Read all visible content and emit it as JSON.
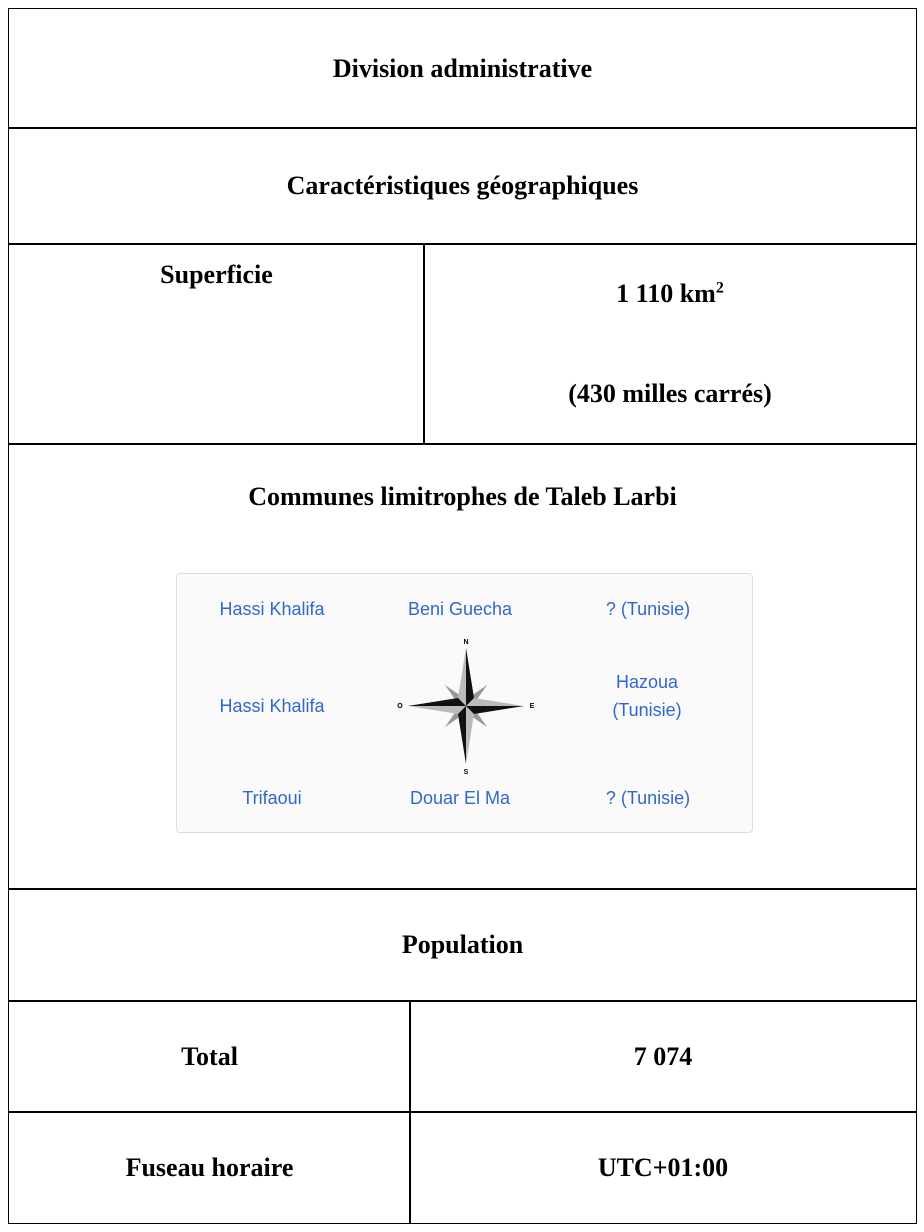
{
  "table": {
    "header": "Division administrative",
    "section_geo": "Caractéristiques géographiques",
    "area": {
      "label": "Superficie",
      "value": "1 110 km",
      "value_sup": "2",
      "value_alt": "(430 milles carrés)"
    },
    "neighbors": {
      "title": "Communes limitrophes de Taleb Larbi",
      "grid": [
        [
          "Hassi Khalifa",
          "Beni Guecha",
          "? (Tunisie)"
        ],
        [
          "Hassi Khalifa",
          "Hazoua (Tunisie)"
        ],
        [
          "Trifaoui",
          "Douar El Ma",
          "? (Tunisie)"
        ]
      ],
      "compass": [
        "N",
        "E",
        "S",
        "O"
      ]
    },
    "section_pop": "Population",
    "population": {
      "label": "Total",
      "value": "7 074"
    },
    "timezone": {
      "label": "Fuseau horaire",
      "value": "UTC+01:00"
    }
  }
}
